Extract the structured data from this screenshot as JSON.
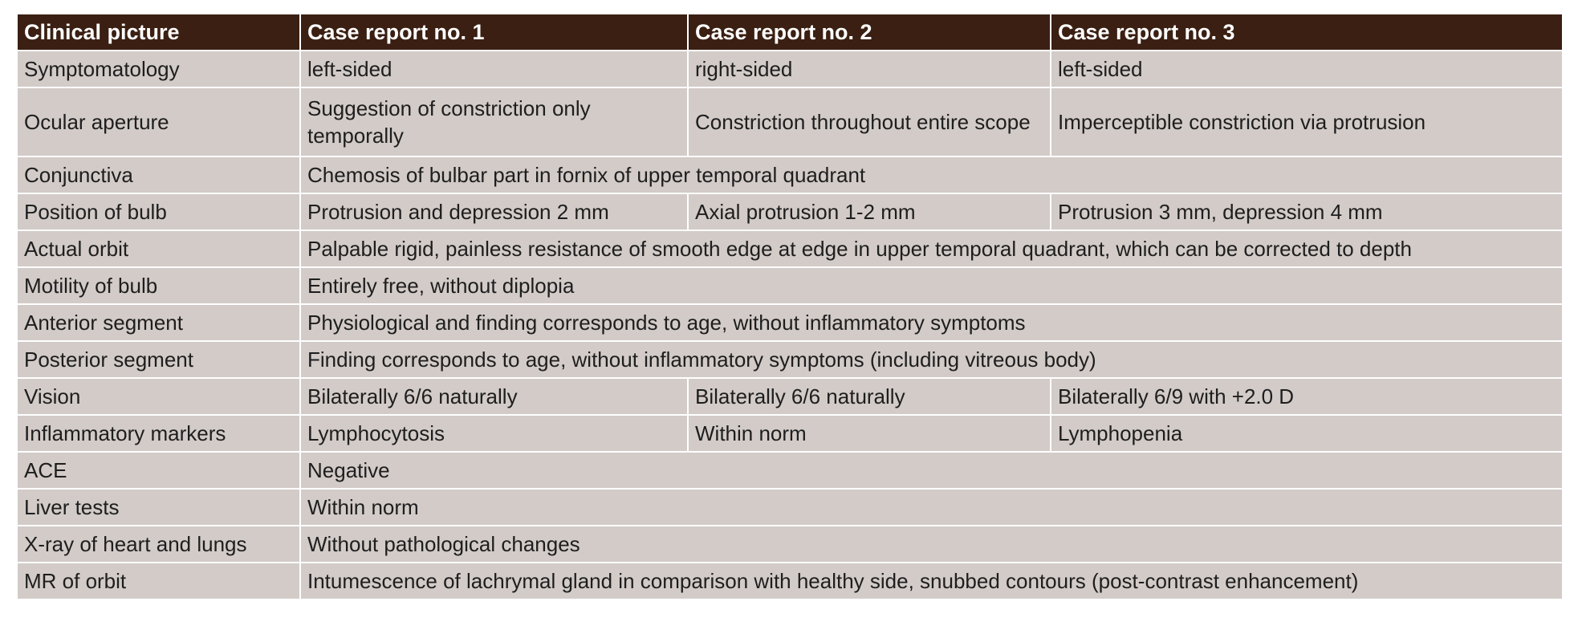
{
  "table": {
    "header": [
      "Clinical picture",
      "Case report no. 1",
      "Case report no. 2",
      "Case report no. 3"
    ],
    "rows": [
      {
        "label": "Symptomatology",
        "cells": [
          "left-sided",
          "right-sided",
          "left-sided"
        ]
      },
      {
        "label": "Ocular aperture",
        "cells": [
          "Suggestion of constriction only temporally",
          "Constriction throughout entire scope",
          "Imperceptible constriction via protrusion"
        ]
      },
      {
        "label": "Conjunctiva",
        "cells": [
          "Chemosis of bulbar part in fornix of upper temporal quadrant"
        ]
      },
      {
        "label": "Position of bulb",
        "cells": [
          "Protrusion and depression 2 mm",
          "Axial protrusion 1-2 mm",
          "Protrusion 3 mm, depression 4 mm"
        ]
      },
      {
        "label": "Actual orbit",
        "cells": [
          "Palpable rigid, painless resistance of smooth edge at edge in upper temporal quadrant, which can be corrected to depth"
        ]
      },
      {
        "label": "Motility of bulb",
        "cells": [
          "Entirely free, without diplopia"
        ]
      },
      {
        "label": "Anterior segment",
        "cells": [
          "Physiological and finding corresponds to age, without inflammatory symptoms"
        ]
      },
      {
        "label": "Posterior segment",
        "cells": [
          "Finding corresponds to age, without inflammatory symptoms (including vitreous body)"
        ]
      },
      {
        "label": "Vision",
        "cells": [
          "Bilaterally 6/6 naturally",
          "Bilaterally 6/6 naturally",
          "Bilaterally 6/9 with +2.0 D"
        ]
      },
      {
        "label": "Inflammatory markers",
        "cells": [
          "Lymphocytosis",
          "Within norm",
          "Lymphopenia"
        ]
      },
      {
        "label": "ACE",
        "cells": [
          "Negative"
        ]
      },
      {
        "label": "Liver tests",
        "cells": [
          "Within norm"
        ]
      },
      {
        "label": "X-ray of heart and lungs",
        "cells": [
          "Without pathological changes"
        ]
      },
      {
        "label": "MR of orbit",
        "cells": [
          "Intumescence of lachrymal gland in comparison with healthy side, snubbed contours (post-contrast enhancement)"
        ]
      }
    ]
  },
  "colors": {
    "header_bg": "#3a1f12",
    "header_text": "#ffffff",
    "cell_bg": "#d2cbc8",
    "cell_text": "#1e1e1e"
  }
}
